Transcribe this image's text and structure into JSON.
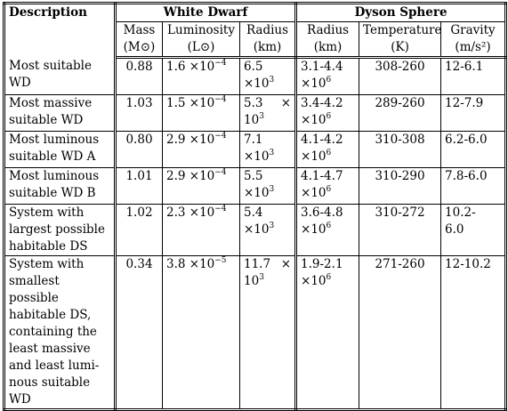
{
  "table": {
    "header": {
      "description": "Description",
      "white_dwarf": "White Dwarf",
      "dyson_sphere": "Dyson Sphere",
      "columns": [
        {
          "line1": "Mass",
          "line2": "(M⊙)"
        },
        {
          "line1": "Luminosity",
          "line2": "(L⊙)"
        },
        {
          "line1": "Radius",
          "line2": "(km)"
        },
        {
          "line1": "Radius",
          "line2": "(km)"
        },
        {
          "line1": "Temperature",
          "line2": "(K)"
        },
        {
          "line1": "Gravity",
          "line2": "(m/s²)"
        }
      ]
    },
    "rows": [
      {
        "description": [
          "Most suitable",
          "WD"
        ],
        "mass": "0.88",
        "luminosity": {
          "base": "1.6 ×10",
          "exp": "−4"
        },
        "wd_radius": {
          "line1": "6.5",
          "line2": "×10",
          "exp": "3"
        },
        "ds_radius": {
          "line1": "3.1-4.4",
          "line2": "×10",
          "exp": "6"
        },
        "temperature": "308-260",
        "gravity": "12-6.1"
      },
      {
        "description": [
          "Most massive",
          "suitable WD"
        ],
        "mass": "1.03",
        "luminosity": {
          "base": "1.5 ×10",
          "exp": "−4"
        },
        "wd_radius": {
          "line1": "5.3 ×",
          "line2": "10",
          "exp": "3"
        },
        "ds_radius": {
          "line1": "3.4-4.2",
          "line2": "×10",
          "exp": "6"
        },
        "temperature": "289-260",
        "gravity": "12-7.9"
      },
      {
        "description": [
          "Most luminous",
          "suitable WD A"
        ],
        "mass": "0.80",
        "luminosity": {
          "base": "2.9 ×10",
          "exp": "−4"
        },
        "wd_radius": {
          "line1": "7.1",
          "line2": "×10",
          "exp": "3"
        },
        "ds_radius": {
          "line1": "4.1-4.2",
          "line2": "×10",
          "exp": "6"
        },
        "temperature": "310-308",
        "gravity": "6.2-6.0"
      },
      {
        "description": [
          "Most luminous",
          "suitable WD B"
        ],
        "mass": "1.01",
        "luminosity": {
          "base": "2.9 ×10",
          "exp": "−4"
        },
        "wd_radius": {
          "line1": "5.5",
          "line2": "×10",
          "exp": "3"
        },
        "ds_radius": {
          "line1": "4.1-4.7",
          "line2": "×10",
          "exp": "6"
        },
        "temperature": "310-290",
        "gravity": "7.8-6.0"
      },
      {
        "description": [
          "System with",
          "largest possible",
          "habitable DS"
        ],
        "mass": "1.02",
        "luminosity": {
          "base": "2.3 ×10",
          "exp": "−4"
        },
        "wd_radius": {
          "line1": "5.4",
          "line2": "×10",
          "exp": "3"
        },
        "ds_radius": {
          "line1": "3.6-4.8",
          "line2": "×10",
          "exp": "6"
        },
        "temperature": "310-272",
        "gravity": "10.2-6.0"
      },
      {
        "description": [
          "System with",
          "smallest possible",
          "habitable DS,",
          "containing the",
          "least massive",
          "and least lumi-",
          "nous suitable",
          "WD"
        ],
        "mass": "0.34",
        "luminosity": {
          "base": "3.8 ×10",
          "exp": "−5"
        },
        "wd_radius": {
          "line1": "11.7 ×",
          "line2": "10",
          "exp": "3"
        },
        "ds_radius": {
          "line1": "1.9-2.1",
          "line2": "×10",
          "exp": "6"
        },
        "temperature": "271-260",
        "gravity": "12-10.2"
      }
    ]
  }
}
